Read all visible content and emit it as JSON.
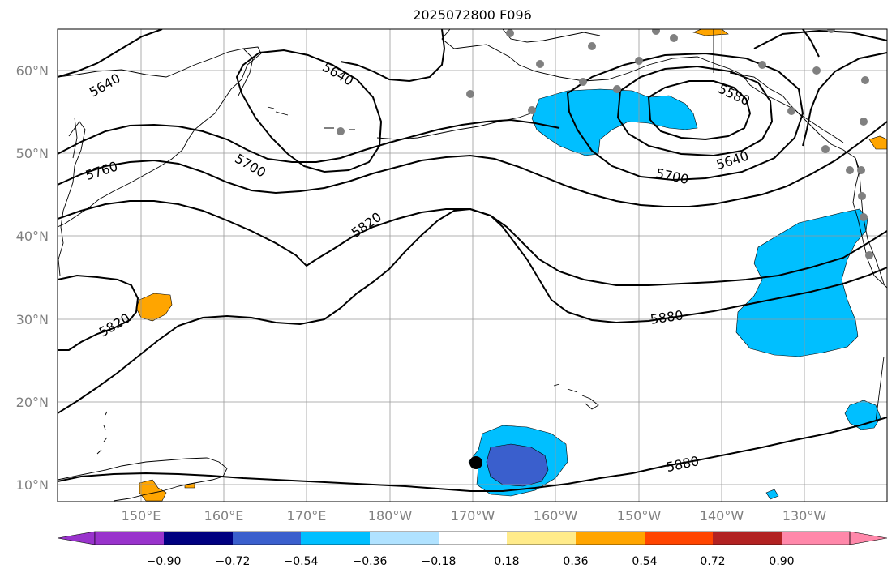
{
  "title": "2025072800 F096",
  "lat_labels": [
    "60°N",
    "50°N",
    "40°N",
    "30°N",
    "20°N",
    "10°N"
  ],
  "lon_labels": [
    "150°E",
    "160°E",
    "170°E",
    "180°W",
    "170°W",
    "160°W",
    "150°W",
    "140°W",
    "130°W"
  ],
  "contour_labels": {
    "c5640_nw": "5640",
    "c5640_center": "5640",
    "c5580": "5580",
    "c5640_low": "5640",
    "c5760": "5760",
    "c5700_west": "5700",
    "c5700_east": "5700",
    "c5820_mid": "5820",
    "c5820_sw": "5820",
    "c5880_east": "5880",
    "c5880_south": "5880"
  },
  "colorbar": {
    "tick_labels": [
      "−0.90",
      "−0.72",
      "−0.54",
      "−0.36",
      "−0.18",
      "0.18",
      "0.36",
      "0.54",
      "0.72",
      "0.90"
    ],
    "colors": [
      "#9933cc",
      "#000080",
      "#3a5fcd",
      "#00bfff",
      "#b0e2ff",
      "#ffffff",
      "#ffeb8a",
      "#ffa500",
      "#ff4500",
      "#b22222",
      "#ff88aa",
      "#ff88aa"
    ]
  }
}
